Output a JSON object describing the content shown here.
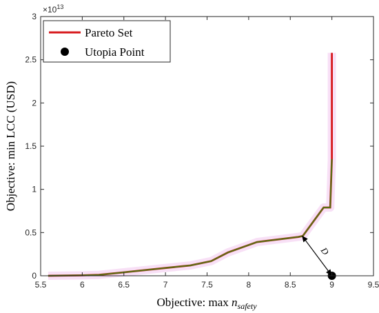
{
  "chart_data": {
    "type": "line",
    "xlabel_prefix": "Objective: max ",
    "xlabel_var": "n",
    "xlabel_sub": "safety",
    "ylabel": "Objective: min LCC (USD)",
    "y_exponent_base": "×10",
    "y_exponent_power": "13",
    "xlim": [
      5.5,
      9.5
    ],
    "ylim": [
      0,
      3
    ],
    "xticks": [
      5.5,
      6,
      6.5,
      7,
      7.5,
      8,
      8.5,
      9,
      9.5
    ],
    "xtick_labels": [
      "5.5",
      "6",
      "6.5",
      "7",
      "7.5",
      "8",
      "8.5",
      "9",
      "9.5"
    ],
    "yticks": [
      0,
      0.5,
      1,
      1.5,
      2,
      2.5,
      3
    ],
    "ytick_labels": [
      "0",
      "0.5",
      "1",
      "1.5",
      "2",
      "2.5",
      "3"
    ],
    "series": [
      {
        "name": "Pareto Set",
        "color": "#d7191c",
        "overlay_color": "#5a6e14",
        "x": [
          5.59,
          6.0,
          6.2,
          6.5,
          7.0,
          7.2,
          7.3,
          7.55,
          7.75,
          8.1,
          8.6,
          8.65,
          8.9,
          8.98,
          9.0,
          9.0
        ],
        "y": [
          0.0,
          0.005,
          0.01,
          0.04,
          0.09,
          0.11,
          0.12,
          0.17,
          0.27,
          0.39,
          0.45,
          0.46,
          0.79,
          0.79,
          1.35,
          2.58
        ]
      },
      {
        "name": "Utopia Point",
        "type": "scatter",
        "color": "#000000",
        "x": [
          9.0
        ],
        "y": [
          0.0
        ]
      }
    ],
    "annotation": {
      "label": "D",
      "from": [
        8.64,
        0.465
      ],
      "to": [
        9.0,
        0.0
      ]
    },
    "legend_position": "top-left",
    "grid": false
  }
}
